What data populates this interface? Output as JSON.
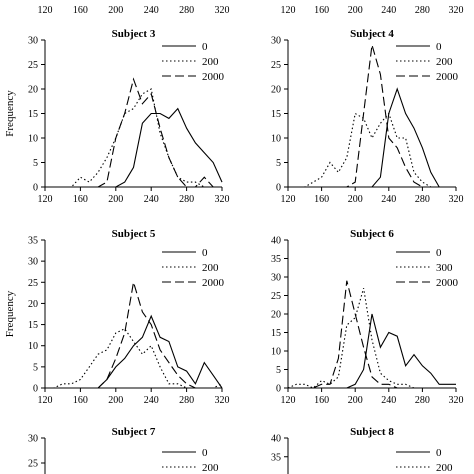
{
  "figure": {
    "top_axis_ticks": [
      "120",
      "160",
      "200",
      "240",
      "280",
      "320"
    ]
  },
  "chart_data": [
    {
      "type": "line",
      "title": "Subject 3",
      "xlabel": "",
      "ylabel": "Frequency",
      "xlim": [
        120,
        320
      ],
      "ylim": [
        0,
        30
      ],
      "xticks": [
        120,
        160,
        200,
        240,
        280,
        320
      ],
      "yticks": [
        0,
        5,
        10,
        15,
        20,
        25,
        30
      ],
      "x": [
        120,
        130,
        140,
        150,
        160,
        170,
        180,
        190,
        200,
        210,
        220,
        230,
        240,
        250,
        260,
        270,
        280,
        290,
        300,
        310,
        320
      ],
      "series": [
        {
          "name": "0",
          "dash": "solid",
          "values": [
            0,
            0,
            0,
            0,
            0,
            0,
            0,
            0,
            0,
            1,
            4,
            13,
            15,
            15,
            14,
            16,
            12,
            9,
            7,
            5,
            1
          ]
        },
        {
          "name": "200",
          "dash": "dotted",
          "values": [
            0,
            0,
            0,
            0,
            2,
            1,
            3,
            6,
            10,
            15,
            16,
            19,
            20,
            11,
            6,
            2,
            1,
            1,
            0,
            0,
            0
          ]
        },
        {
          "name": "2000",
          "dash": "dashed",
          "values": [
            0,
            0,
            0,
            0,
            0,
            0,
            0,
            1,
            10,
            15,
            22,
            17,
            19,
            12,
            6,
            2,
            0,
            0,
            2,
            0,
            0
          ]
        }
      ]
    },
    {
      "type": "line",
      "title": "Subject 4",
      "xlabel": "",
      "ylabel": "",
      "xlim": [
        120,
        320
      ],
      "ylim": [
        0,
        30
      ],
      "xticks": [
        120,
        160,
        200,
        240,
        280,
        320
      ],
      "yticks": [
        0,
        5,
        10,
        15,
        20,
        25,
        30
      ],
      "x": [
        120,
        130,
        140,
        150,
        160,
        170,
        180,
        190,
        200,
        210,
        220,
        230,
        240,
        250,
        260,
        270,
        280,
        290,
        300,
        310,
        320
      ],
      "series": [
        {
          "name": "0",
          "dash": "solid",
          "values": [
            0,
            0,
            0,
            0,
            0,
            0,
            0,
            0,
            0,
            0,
            0,
            2,
            15,
            20,
            15,
            12,
            8,
            3,
            0,
            0,
            0
          ]
        },
        {
          "name": "200",
          "dash": "dotted",
          "values": [
            0,
            0,
            0,
            1,
            2,
            5,
            3,
            6,
            15,
            14,
            10,
            13,
            15,
            10,
            10,
            3,
            1,
            0,
            0,
            0,
            0
          ]
        },
        {
          "name": "2000",
          "dash": "dashed",
          "values": [
            0,
            0,
            0,
            0,
            0,
            0,
            0,
            0,
            1,
            15,
            29,
            23,
            10,
            8,
            4,
            1,
            0,
            0,
            0,
            0,
            0
          ]
        }
      ]
    },
    {
      "type": "line",
      "title": "Subject 5",
      "xlabel": "",
      "ylabel": "Frequency",
      "xlim": [
        120,
        320
      ],
      "ylim": [
        0,
        35
      ],
      "xticks": [
        120,
        160,
        200,
        240,
        280,
        320
      ],
      "yticks": [
        0,
        5,
        10,
        15,
        20,
        25,
        30,
        35
      ],
      "x": [
        120,
        130,
        140,
        150,
        160,
        170,
        180,
        190,
        200,
        210,
        220,
        230,
        240,
        250,
        260,
        270,
        280,
        290,
        300,
        310,
        320
      ],
      "series": [
        {
          "name": "0",
          "dash": "solid",
          "values": [
            0,
            0,
            0,
            0,
            0,
            0,
            0,
            2,
            5,
            7,
            10,
            12,
            17,
            12,
            11,
            5,
            4,
            1,
            6,
            3,
            0
          ]
        },
        {
          "name": "200",
          "dash": "dotted",
          "values": [
            0,
            0,
            1,
            1,
            2,
            5,
            8,
            9,
            13,
            14,
            11,
            8,
            10,
            5,
            1,
            1,
            0,
            0,
            0,
            0,
            1
          ]
        },
        {
          "name": "2000",
          "dash": "dashed",
          "values": [
            0,
            0,
            0,
            0,
            0,
            0,
            0,
            2,
            7,
            13,
            25,
            18,
            15,
            9,
            6,
            3,
            1,
            0,
            0,
            0,
            0
          ]
        }
      ]
    },
    {
      "type": "line",
      "title": "Subject 6",
      "xlabel": "",
      "ylabel": "",
      "xlim": [
        120,
        320
      ],
      "ylim": [
        0,
        40
      ],
      "xticks": [
        120,
        160,
        200,
        240,
        280,
        320
      ],
      "yticks": [
        0,
        5,
        10,
        15,
        20,
        25,
        30,
        35,
        40
      ],
      "x": [
        120,
        130,
        140,
        150,
        160,
        170,
        180,
        190,
        200,
        210,
        220,
        230,
        240,
        250,
        260,
        270,
        280,
        290,
        300,
        310,
        320
      ],
      "series": [
        {
          "name": "0",
          "dash": "solid",
          "values": [
            0,
            0,
            0,
            0,
            0,
            0,
            0,
            0,
            1,
            5,
            20,
            11,
            15,
            14,
            6,
            9,
            6,
            4,
            1,
            1,
            1
          ]
        },
        {
          "name": "300",
          "dash": "dotted",
          "values": [
            0,
            1,
            1,
            0,
            2,
            1,
            3,
            17,
            19,
            27,
            13,
            4,
            2,
            1,
            1,
            0,
            0,
            0,
            0,
            0,
            0
          ]
        },
        {
          "name": "2000",
          "dash": "dashed",
          "values": [
            0,
            0,
            0,
            0,
            1,
            1,
            8,
            29,
            20,
            11,
            3,
            1,
            1,
            0,
            0,
            0,
            0,
            0,
            0,
            0,
            0
          ]
        }
      ]
    },
    {
      "type": "line",
      "title": "Subject 7",
      "xlabel": "",
      "ylabel": "",
      "xlim": [
        120,
        320
      ],
      "ylim": [
        0,
        30
      ],
      "xticks": [],
      "yticks": [
        25,
        30
      ],
      "x": [],
      "series": [
        {
          "name": "0",
          "dash": "solid",
          "values": []
        },
        {
          "name": "200",
          "dash": "dotted",
          "values": []
        }
      ]
    },
    {
      "type": "line",
      "title": "Subject 8",
      "xlabel": "",
      "ylabel": "",
      "xlim": [
        120,
        320
      ],
      "ylim": [
        0,
        40
      ],
      "xticks": [],
      "yticks": [
        35,
        40
      ],
      "x": [],
      "series": [
        {
          "name": "0",
          "dash": "solid",
          "values": []
        },
        {
          "name": "200",
          "dash": "dotted",
          "values": []
        }
      ]
    }
  ]
}
